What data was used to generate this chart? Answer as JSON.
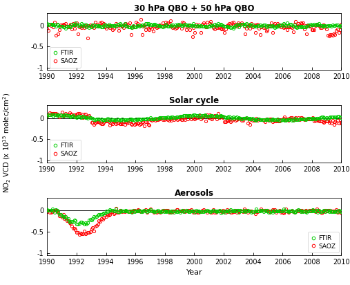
{
  "title_qbo": "30 hPa QBO + 50 hPa QBO",
  "title_solar": "Solar cycle",
  "title_aerosols": "Aerosols",
  "ylabel": "NO$_2$ VCD (x 10$^{15}$ molec/cm$^2$)",
  "xlabel": "Year",
  "xlim": [
    1990,
    2010
  ],
  "ylim": [
    -1.05,
    0.3
  ],
  "yticks": [
    -1,
    -0.5,
    0
  ],
  "ytick_labels": [
    "-1",
    "-0.5",
    "0"
  ],
  "xticks": [
    1990,
    1992,
    1994,
    1996,
    1998,
    2000,
    2002,
    2004,
    2006,
    2008,
    2010
  ],
  "ftir_color": "#00cc00",
  "saoz_color": "#ff0000",
  "marker_size": 3.0,
  "random_seed": 7
}
